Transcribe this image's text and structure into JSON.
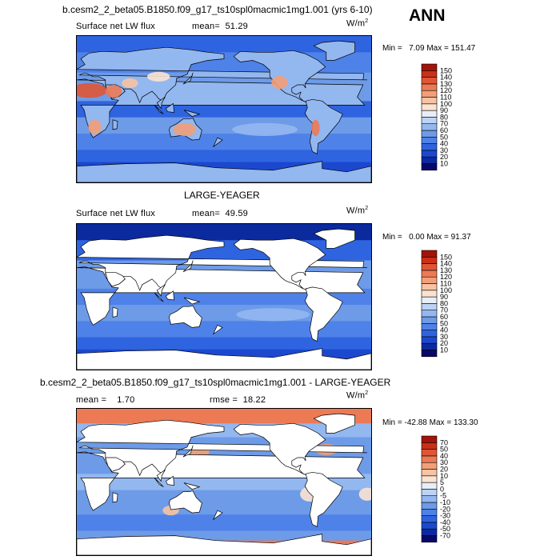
{
  "header": {
    "case_title": "b.cesm2_2_beta05.B1850.f09_g17_ts10spl0macmic1mg1.001 (yrs 6-10)",
    "season": "ANN"
  },
  "panels": [
    {
      "id": "top",
      "title": "",
      "field_label": "Surface net LW flux",
      "mean_label": "mean=",
      "mean_value": "51.29",
      "rmse_label": "",
      "rmse_value": "",
      "units": "W/m",
      "units_sup": "2",
      "min_label": "Min =",
      "min_value": "7.09",
      "max_label": "Max =",
      "max_value": "151.47"
    },
    {
      "id": "middle",
      "title": "LARGE-YEAGER",
      "field_label": "Surface net LW flux",
      "mean_label": "mean=",
      "mean_value": "49.59",
      "rmse_label": "",
      "rmse_value": "",
      "units": "W/m",
      "units_sup": "2",
      "min_label": "Min =",
      "min_value": "0.00",
      "max_label": "Max =",
      "max_value": "91.37"
    },
    {
      "id": "bottom",
      "title": "b.cesm2_2_beta05.B1850.f09_g17_ts10spl0macmic1mg1.001 - LARGE-YEAGER",
      "field_label": "",
      "mean_label": "mean =",
      "mean_value": "1.70",
      "rmse_label": "rmse =",
      "rmse_value": "18.22",
      "units": "W/m",
      "units_sup": "2",
      "min_label": "Min =",
      "min_value": "-42.88",
      "max_label": "Max =",
      "max_value": "133.30"
    }
  ],
  "chart_data": [
    {
      "type": "heatmap",
      "subtype": "global-map",
      "projection": "cylindrical-equidistant",
      "lon_range": [
        0,
        360
      ],
      "lat_range": [
        -90,
        90
      ],
      "colorbar_levels": [
        10,
        20,
        30,
        40,
        50,
        60,
        70,
        80,
        90,
        100,
        110,
        120,
        130,
        140,
        150
      ],
      "colorbar_colors": [
        "#08086b",
        "#0b2a9e",
        "#1c48cf",
        "#2f64e0",
        "#4f82e8",
        "#6d9be8",
        "#93b7ef",
        "#bcd3f5",
        "#e8eef8",
        "#fbe3d0",
        "#f7c3a2",
        "#f29f78",
        "#ec7a55",
        "#e05535",
        "#c93018",
        "#a31308"
      ]
    },
    {
      "type": "heatmap",
      "subtype": "global-map",
      "projection": "cylindrical-equidistant",
      "lon_range": [
        0,
        360
      ],
      "lat_range": [
        -90,
        90
      ],
      "land_masked": true,
      "colorbar_levels": [
        10,
        20,
        30,
        40,
        50,
        60,
        70,
        80,
        90,
        100,
        110,
        120,
        130,
        140,
        150
      ],
      "colorbar_colors": [
        "#08086b",
        "#0b2a9e",
        "#1c48cf",
        "#2f64e0",
        "#4f82e8",
        "#6d9be8",
        "#93b7ef",
        "#bcd3f5",
        "#e8eef8",
        "#fbe3d0",
        "#f7c3a2",
        "#f29f78",
        "#ec7a55",
        "#e05535",
        "#c93018",
        "#a31308"
      ]
    },
    {
      "type": "heatmap",
      "subtype": "global-map-difference",
      "projection": "cylindrical-equidistant",
      "lon_range": [
        0,
        360
      ],
      "lat_range": [
        -90,
        90
      ],
      "land_masked": true,
      "colorbar_levels": [
        "-70",
        "-50",
        "-40",
        "-30",
        "-20",
        "-10",
        "-5",
        "0",
        "5",
        "10",
        "20",
        "30",
        "40",
        "50",
        "70"
      ],
      "colorbar_colors": [
        "#08086b",
        "#0b2a9e",
        "#1c48cf",
        "#2f64e0",
        "#4f82e8",
        "#6d9be8",
        "#93b7ef",
        "#bcd3f5",
        "#e8eef8",
        "#fbe3d0",
        "#f7c3a2",
        "#f29f78",
        "#ec7a55",
        "#e05535",
        "#c93018",
        "#a31308"
      ]
    }
  ]
}
